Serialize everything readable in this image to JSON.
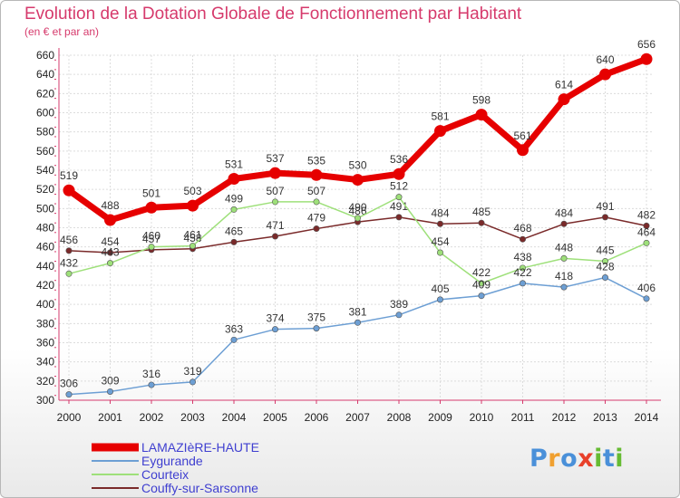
{
  "header": {
    "title": "Evolution de la Dotation Globale de Fonctionnement par Habitant",
    "subtitle": "(en € et par an)"
  },
  "chart_data": {
    "type": "line",
    "x": [
      "2000",
      "2001",
      "2002",
      "2003",
      "2004",
      "2005",
      "2006",
      "2007",
      "2008",
      "2009",
      "2010",
      "2011",
      "2012",
      "2013",
      "2014"
    ],
    "ylim": [
      300,
      660
    ],
    "yticks": [
      300,
      320,
      340,
      360,
      380,
      400,
      420,
      440,
      460,
      480,
      500,
      520,
      540,
      560,
      580,
      600,
      620,
      640,
      660
    ],
    "grid": true,
    "legend_position": "bottom-left",
    "series": [
      {
        "name": "LAMAZIèRE-HAUTE",
        "color": "#e60000",
        "values": [
          519,
          488,
          501,
          503,
          531,
          537,
          535,
          530,
          536,
          581,
          598,
          561,
          614,
          640,
          656
        ]
      },
      {
        "name": "Eygurande",
        "color": "#6d9fd4",
        "values": [
          306,
          309,
          316,
          319,
          363,
          374,
          375,
          381,
          389,
          405,
          409,
          422,
          418,
          428,
          406
        ]
      },
      {
        "name": "Courteix",
        "color": "#9ee07a",
        "values": [
          432,
          443,
          460,
          461,
          499,
          507,
          507,
          490,
          512,
          454,
          422,
          438,
          448,
          445,
          464
        ]
      },
      {
        "name": "Couffy-sur-Sarsonne",
        "color": "#7a2a2a",
        "values": [
          456,
          454,
          457,
          458,
          465,
          471,
          479,
          486,
          491,
          484,
          485,
          468,
          484,
          491,
          482
        ]
      }
    ]
  },
  "logo": {
    "letters": [
      "P",
      "r",
      "o",
      "x",
      "i",
      "t",
      "i"
    ],
    "colors": [
      "#4a90d9",
      "#f0a030",
      "#4a90d9",
      "#e8402a",
      "#66bb33",
      "#4a90d9",
      "#66bb33"
    ]
  }
}
